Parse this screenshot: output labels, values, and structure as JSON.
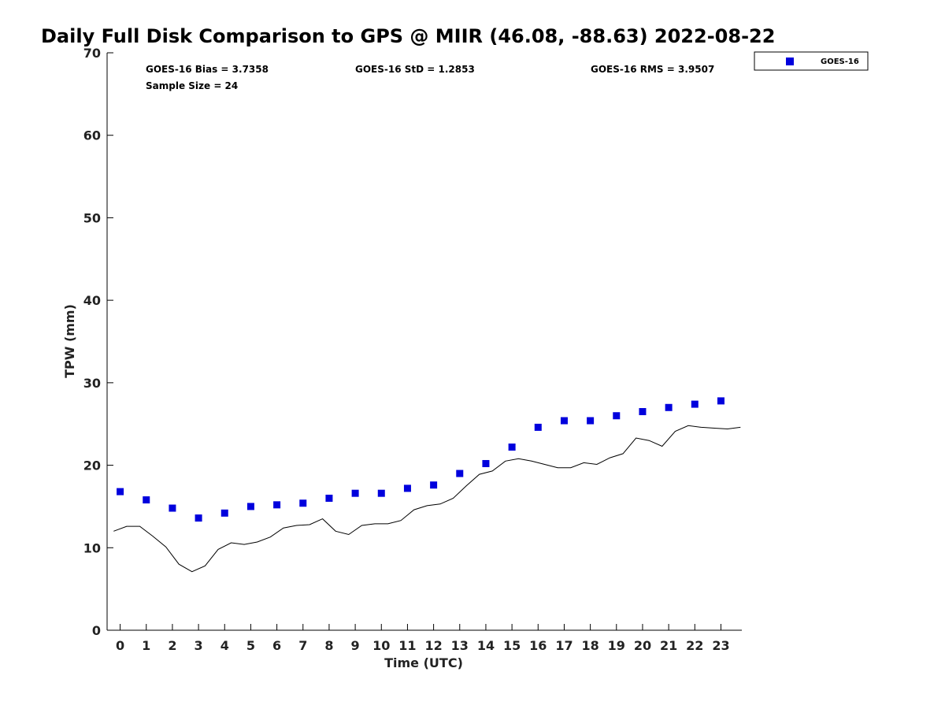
{
  "chart_data": {
    "type": "scatter",
    "title": "Daily Full Disk Comparison to GPS @ MIIR (46.08, -88.63) 2022-08-22",
    "xlabel": "Time (UTC)",
    "ylabel": "TPW (mm)",
    "xlim": [
      -0.5,
      23.8
    ],
    "ylim": [
      0,
      70
    ],
    "x_ticks": [
      0,
      1,
      2,
      3,
      4,
      5,
      6,
      7,
      8,
      9,
      10,
      11,
      12,
      13,
      14,
      15,
      16,
      17,
      18,
      19,
      20,
      21,
      22,
      23
    ],
    "y_ticks": [
      0,
      10,
      20,
      30,
      40,
      50,
      60,
      70
    ],
    "grid": false,
    "legend_position": "top-right",
    "stats": {
      "bias": "GOES-16 Bias = 3.7358",
      "std": "GOES-16 StD = 1.2853",
      "rms": "GOES-16 RMS = 3.9507",
      "sample": "Sample Size = 24"
    },
    "series": [
      {
        "name": "GOES-16",
        "kind": "scatter",
        "color": "#0000dd",
        "x": [
          0,
          1,
          2,
          3,
          4,
          5,
          6,
          7,
          8,
          9,
          10,
          11,
          12,
          13,
          14,
          15,
          16,
          17,
          18,
          19,
          20,
          21,
          22,
          23
        ],
        "y": [
          16.8,
          15.8,
          14.8,
          13.6,
          14.2,
          15.0,
          15.2,
          15.4,
          16.0,
          16.6,
          16.6,
          17.2,
          17.6,
          19.0,
          20.2,
          22.2,
          24.6,
          25.4,
          25.4,
          26.0,
          26.5,
          27.0,
          27.4,
          27.8
        ]
      },
      {
        "kind": "line",
        "color": "#000000",
        "x": [
          -0.25,
          0.25,
          0.75,
          1.25,
          1.75,
          2.25,
          2.75,
          3.25,
          3.75,
          4.25,
          4.75,
          5.25,
          5.75,
          6.25,
          6.75,
          7.25,
          7.75,
          8.25,
          8.75,
          9.25,
          9.75,
          10.25,
          10.75,
          11.25,
          11.75,
          12.25,
          12.75,
          13.25,
          13.75,
          14.25,
          14.75,
          15.25,
          15.75,
          16.25,
          16.75,
          17.25,
          17.75,
          18.25,
          18.75,
          19.25,
          19.75,
          20.25,
          20.75,
          21.25,
          21.75,
          22.25,
          22.75,
          23.25,
          23.75
        ],
        "y": [
          12.0,
          12.6,
          12.6,
          11.4,
          10.1,
          8.0,
          7.1,
          7.8,
          9.8,
          10.6,
          10.4,
          10.7,
          11.3,
          12.4,
          12.7,
          12.8,
          13.5,
          12.0,
          11.6,
          12.7,
          12.9,
          12.9,
          13.3,
          14.6,
          15.1,
          15.3,
          16.0,
          17.5,
          18.9,
          19.3,
          20.5,
          20.8,
          20.5,
          20.1,
          19.7,
          19.7,
          20.3,
          20.1,
          20.9,
          21.4,
          23.3,
          23.0,
          22.3,
          24.1,
          24.8,
          24.6,
          24.5,
          24.4,
          24.6
        ]
      }
    ]
  }
}
